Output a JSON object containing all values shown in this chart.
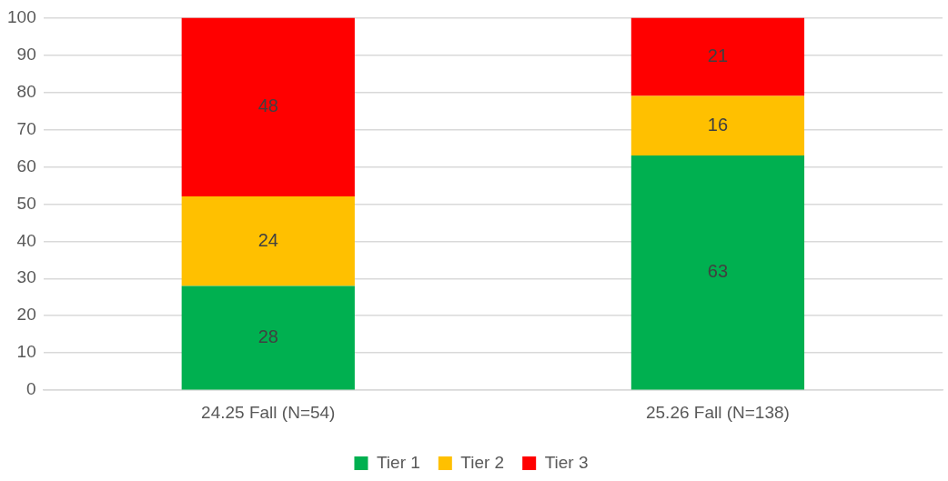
{
  "chart_data": {
    "type": "bar",
    "stacked": true,
    "categories": [
      "24.25 Fall (N=54)",
      "25.26 Fall (N=138)"
    ],
    "series": [
      {
        "name": "Tier 1",
        "color": "#00b050",
        "values": [
          28,
          63
        ]
      },
      {
        "name": "Tier 2",
        "color": "#ffc000",
        "values": [
          24,
          16
        ]
      },
      {
        "name": "Tier 3",
        "color": "#ff0000",
        "values": [
          48,
          21
        ]
      }
    ],
    "ylim": [
      0,
      100
    ],
    "yticks": [
      0,
      10,
      20,
      30,
      40,
      50,
      60,
      70,
      80,
      90,
      100
    ],
    "grid": "y",
    "legend": "bottom",
    "data_labels": true
  }
}
